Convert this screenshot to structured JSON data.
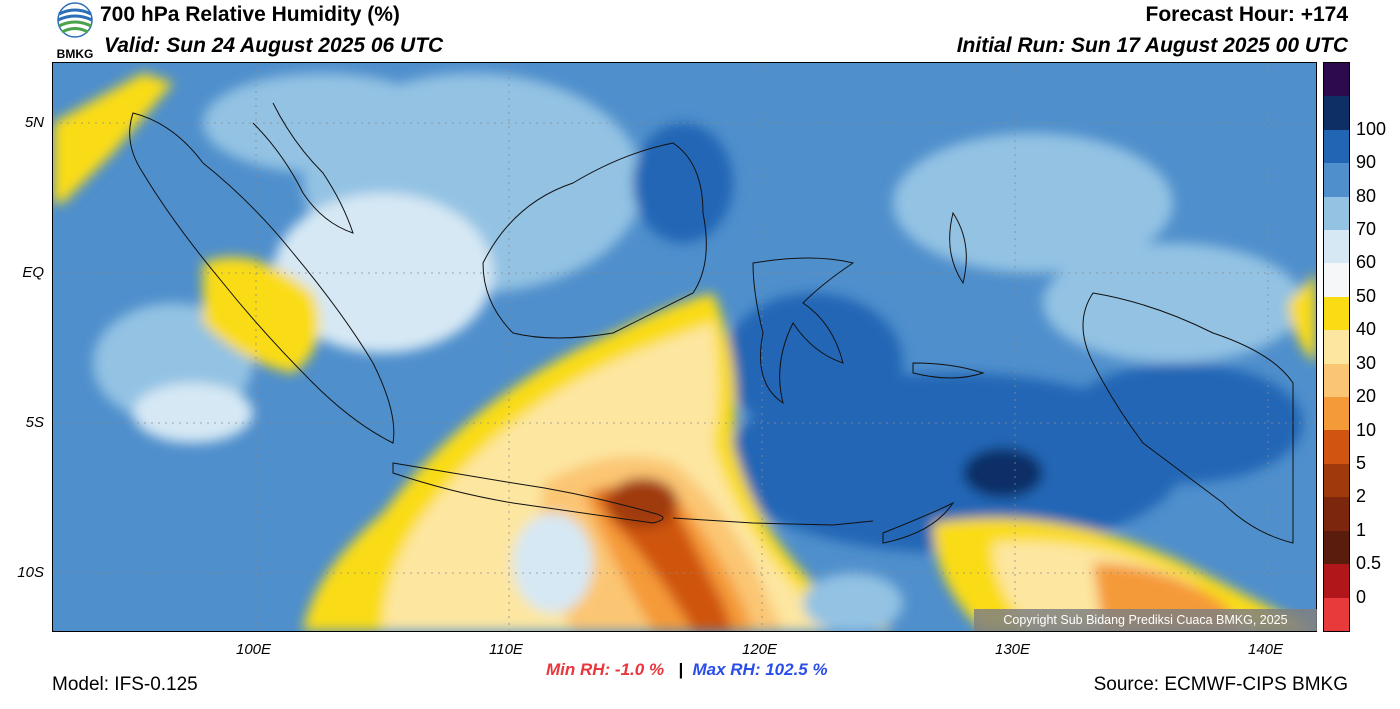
{
  "header": {
    "title": "700 hPa Relative Humidity (%)",
    "valid": "Valid: Sun 24 August 2025 06 UTC",
    "forecast_hour": "Forecast Hour: +174",
    "initial_run": "Initial Run: Sun 17 August 2025 00 UTC",
    "logo_text": "BMKG"
  },
  "map": {
    "lat_labels": [
      "5N",
      "EQ",
      "5S",
      "10S"
    ],
    "lon_labels": [
      "100E",
      "110E",
      "120E",
      "130E",
      "140E"
    ],
    "copyright": "Copyright Sub Bidang Prediksi Cuaca BMKG, 2025"
  },
  "colorbar": {
    "labels": [
      "100",
      "90",
      "80",
      "70",
      "60",
      "50",
      "40",
      "30",
      "20",
      "10",
      "5",
      "2",
      "1",
      "0.5",
      "0"
    ],
    "colors": [
      "#2d0a4e",
      "#0d2f66",
      "#2066b5",
      "#4f8fcc",
      "#93c2e3",
      "#d6e8f4",
      "#f6f7f8",
      "#fadc14",
      "#fde6a0",
      "#fbc673",
      "#f59a38",
      "#cf5510",
      "#a03a0a",
      "#7b260d",
      "#5a1c0c",
      "#b0161a",
      "#e83a3a"
    ]
  },
  "stats": {
    "min_rh": "Min RH:  -1.0 %",
    "separator": "|",
    "max_rh": "Max RH: 102.5 %"
  },
  "footer": {
    "model": "Model: IFS-0.125",
    "source": "Source: ECMWF-CIPS BMKG"
  }
}
